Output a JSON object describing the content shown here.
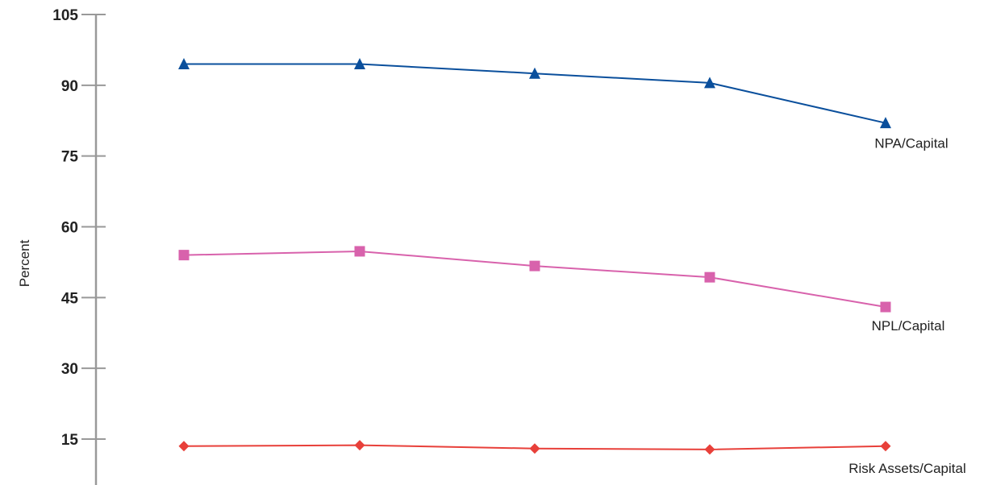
{
  "chart_data": {
    "type": "line",
    "title": "",
    "xlabel": "",
    "ylabel": "Percent",
    "ylim": [
      0,
      105
    ],
    "yticks": [
      15,
      30,
      45,
      60,
      75,
      90,
      105
    ],
    "grid": false,
    "legend": "direct labels at right end of each line",
    "x": [
      1,
      2,
      3,
      4,
      5
    ],
    "axis_color": "#999999",
    "series": [
      {
        "name": "NPA/Capital",
        "values": [
          94.5,
          94.5,
          92.5,
          90.5,
          82.0
        ],
        "color": "#0a4f9c",
        "marker": "triangle"
      },
      {
        "name": "NPL/Capital",
        "values": [
          54.0,
          54.8,
          51.7,
          49.3,
          43.0
        ],
        "color": "#d862ac",
        "marker": "square"
      },
      {
        "name": "Risk Assets/Capital",
        "values": [
          13.5,
          13.7,
          13.0,
          12.8,
          13.5
        ],
        "color": "#e8403a",
        "marker": "diamond"
      }
    ]
  }
}
